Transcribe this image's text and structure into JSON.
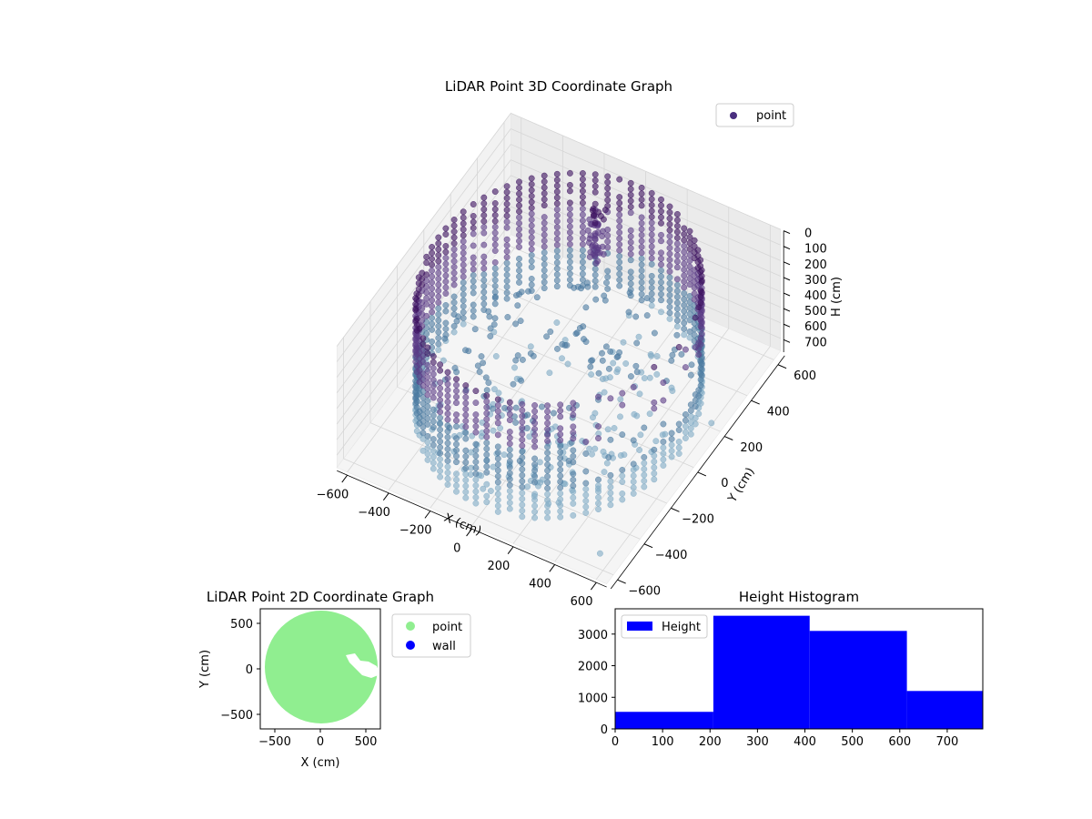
{
  "colors": {
    "point3d_dark": "#3b0f5e",
    "point3d_purple": "#5a3a86",
    "point3d_blue": "#4b7aa0",
    "point3d_light": "#7faac4",
    "point2d": "#90ee90",
    "wall": "#0000ff",
    "histogram": "#0000ff",
    "pane_gray": "#f2f2f2",
    "grid": "#d6d6d6"
  },
  "chart_data": [
    {
      "type": "scatter",
      "title": "LiDAR Point 3D Coordinate Graph",
      "projection": "3d",
      "xlabel": "X (cm)",
      "ylabel": "Y (cm)",
      "zlabel": "H (cm)",
      "xlim": [
        -650,
        650
      ],
      "ylim": [
        -650,
        650
      ],
      "zlim": [
        0,
        780
      ],
      "z_inverted": true,
      "xticks": [
        "−600",
        "−400",
        "−200",
        "0",
        "200",
        "400",
        "600"
      ],
      "yticks": [
        "−600",
        "−400",
        "−200",
        "0",
        "200",
        "400",
        "600"
      ],
      "zticks": [
        "0",
        "100",
        "200",
        "300",
        "400",
        "500",
        "600",
        "700"
      ],
      "legend": {
        "position": "top-right",
        "entries": [
          "point"
        ]
      },
      "series": [
        {
          "name": "point",
          "color_map": "viridis-dark",
          "description_shape": "cylindrical wall of points, radius ~580 cm, heights 0–700 cm, with a notch on the +X side",
          "outliers": [
            {
              "x": 620,
              "y": 180,
              "h": 720
            },
            {
              "x": 560,
              "y": -560,
              "h": 740
            },
            {
              "x": 450,
              "y": -120,
              "h": 760
            }
          ]
        }
      ],
      "grid": true
    },
    {
      "type": "scatter",
      "title": "LiDAR Point 2D Coordinate Graph",
      "xlabel": "X (cm)",
      "ylabel": "Y (cm)",
      "xlim": [
        -660,
        660
      ],
      "ylim": [
        -660,
        660
      ],
      "xticks": [
        "−500",
        "0",
        "500"
      ],
      "yticks": [
        "500",
        "0",
        "−500"
      ],
      "legend": {
        "position": "outside-right",
        "entries": [
          "point",
          "wall"
        ]
      },
      "series": [
        {
          "name": "point",
          "color": "#90ee90",
          "shape": "filled disc radius ~620 cm clipped to axes, notch near x 250–600, y −80–160"
        },
        {
          "name": "wall",
          "color": "#0000ff",
          "values": []
        }
      ],
      "grid": false
    },
    {
      "type": "bar",
      "title": "Height Histogram",
      "xlim": [
        0,
        775
      ],
      "ylim": [
        0,
        3800
      ],
      "xticks": [
        "0",
        "100",
        "200",
        "300",
        "400",
        "500",
        "600",
        "700"
      ],
      "yticks": [
        "0",
        "1000",
        "2000",
        "3000"
      ],
      "legend": {
        "position": "top-left",
        "entries": [
          "Height"
        ]
      },
      "bins": [
        {
          "x0": 0,
          "x1": 207,
          "count": 540
        },
        {
          "x0": 207,
          "x1": 410,
          "count": 3580
        },
        {
          "x0": 410,
          "x1": 615,
          "count": 3100
        },
        {
          "x0": 615,
          "x1": 775,
          "count": 1200
        }
      ],
      "grid": false
    }
  ]
}
